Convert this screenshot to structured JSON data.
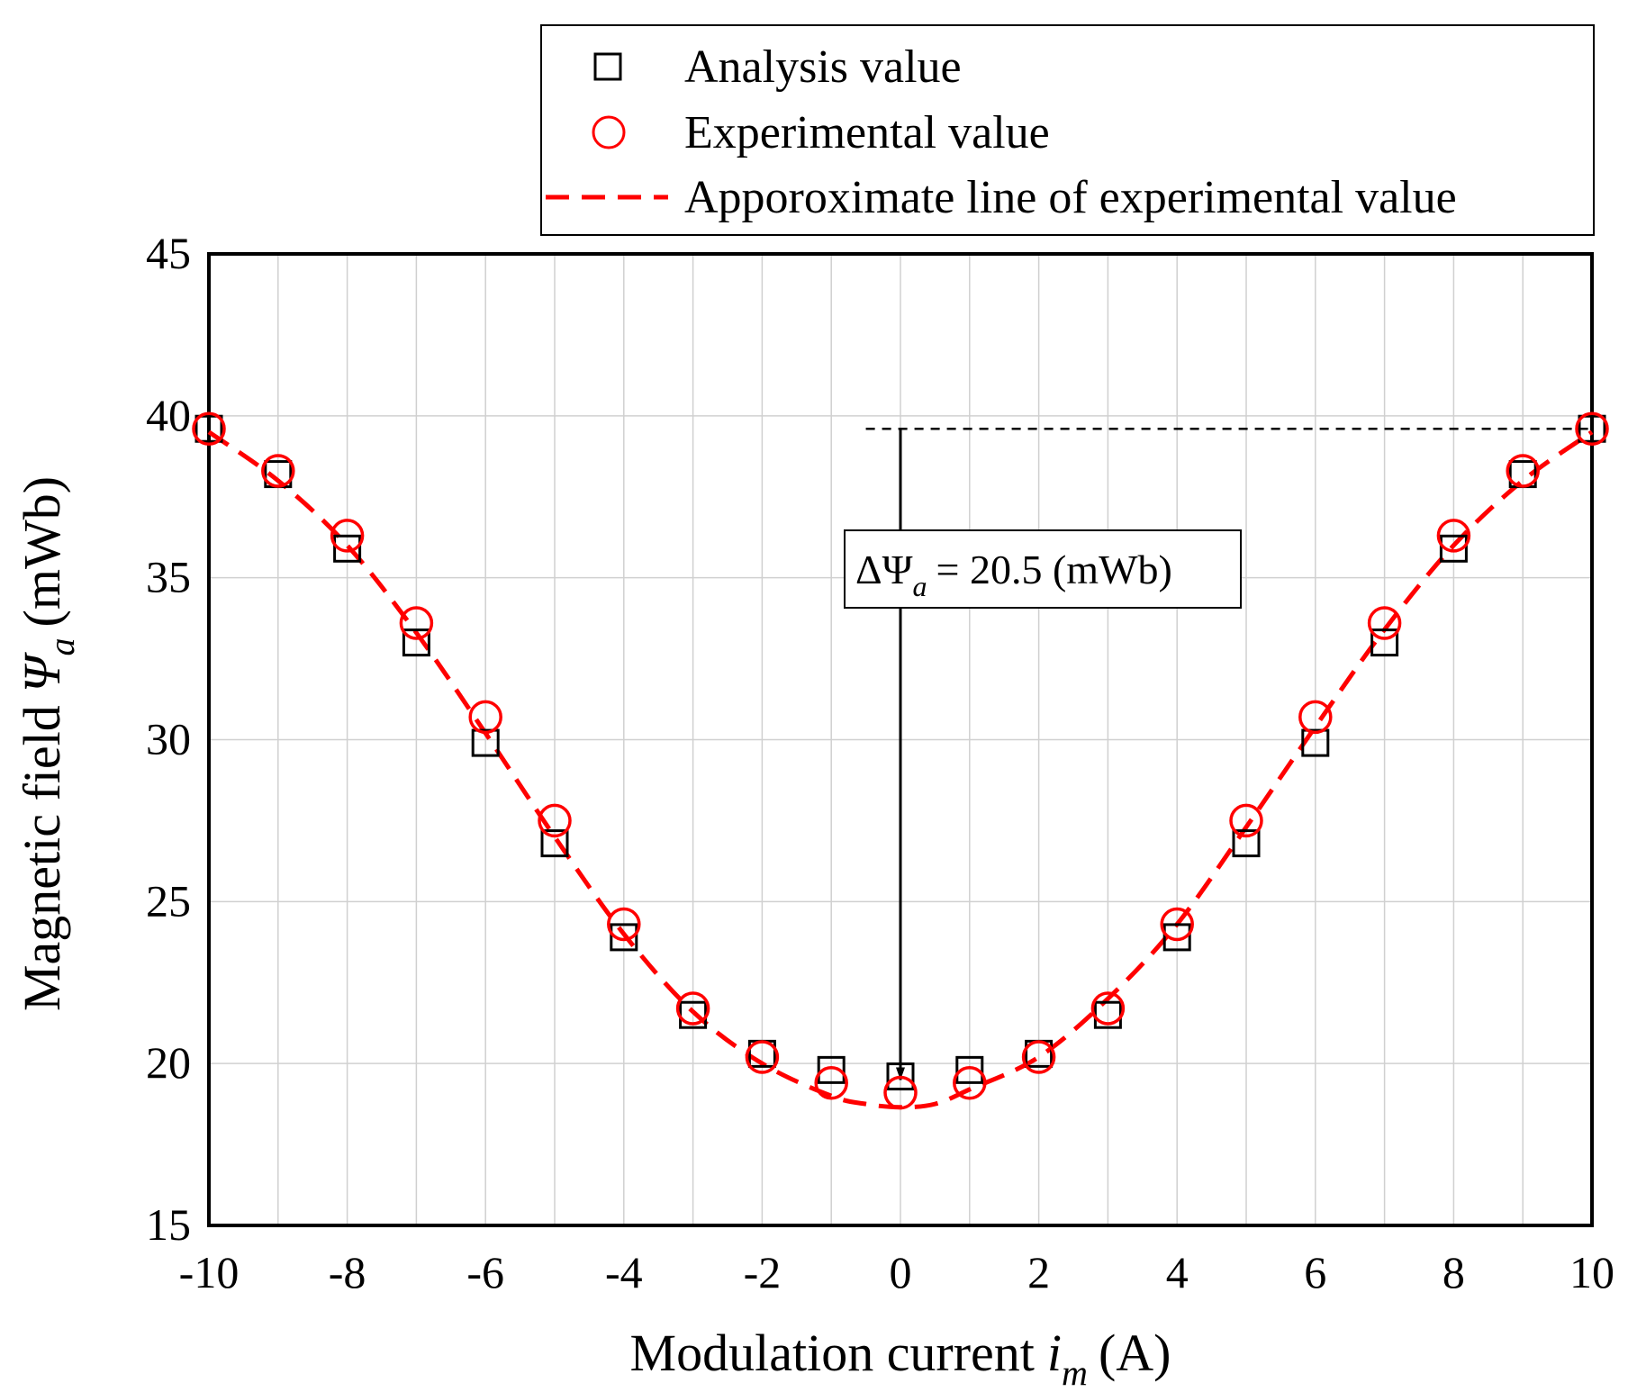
{
  "chart_data": {
    "type": "scatter",
    "xlabel": "Modulation current",
    "xlabel_symbol": "i",
    "xlabel_sub": "m",
    "xlabel_unit": "(A)",
    "ylabel": "Magnetic field",
    "ylabel_symbol": "Ψ",
    "ylabel_sub": "a",
    "ylabel_unit": "(mWb)",
    "xlim": [
      -10,
      10
    ],
    "ylim": [
      15,
      45
    ],
    "xticks": [
      -10,
      -8,
      -6,
      -4,
      -2,
      0,
      2,
      4,
      6,
      8,
      10
    ],
    "yticks": [
      15,
      20,
      25,
      30,
      35,
      40,
      45
    ],
    "grid": true,
    "legend_position": "top-right, above plot",
    "series": [
      {
        "name": "Analysis value",
        "marker": "square",
        "color": "#000000",
        "x": [
          -10,
          -9,
          -8,
          -7,
          -6,
          -5,
          -4,
          -3,
          -2,
          -1,
          0,
          1,
          2,
          3,
          4,
          5,
          6,
          7,
          8,
          9,
          10
        ],
        "y": [
          39.6,
          38.2,
          35.9,
          33.0,
          29.9,
          26.8,
          23.9,
          21.5,
          20.3,
          19.8,
          19.6,
          19.8,
          20.3,
          21.5,
          23.9,
          26.8,
          29.9,
          33.0,
          35.9,
          38.2,
          39.6
        ]
      },
      {
        "name": "Experimental value",
        "marker": "circle",
        "color": "#ff0000",
        "x": [
          -10,
          -9,
          -8,
          -7,
          -6,
          -5,
          -4,
          -3,
          -2,
          -1,
          0,
          1,
          2,
          3,
          4,
          5,
          6,
          7,
          8,
          9,
          10
        ],
        "y": [
          39.6,
          38.3,
          36.3,
          33.6,
          30.7,
          27.5,
          24.3,
          21.7,
          20.2,
          19.4,
          19.1,
          19.4,
          20.2,
          21.7,
          24.3,
          27.5,
          30.7,
          33.6,
          36.3,
          38.3,
          39.6
        ]
      },
      {
        "name": "Apporoximate line of experimental value",
        "line": "dashed",
        "color": "#ff0000",
        "x": [
          -10,
          -9,
          -8,
          -7,
          -6,
          -5,
          -4,
          -3,
          -2,
          -1,
          -0.5,
          0,
          0.5,
          1,
          2,
          3,
          4,
          5,
          6,
          7,
          8,
          9,
          10
        ],
        "y": [
          39.5,
          38.0,
          36.0,
          33.3,
          30.2,
          27.0,
          24.0,
          21.6,
          20.0,
          19.0,
          18.75,
          18.65,
          18.75,
          19.2,
          20.2,
          22.0,
          24.3,
          27.3,
          30.4,
          33.4,
          36.0,
          38.0,
          39.5
        ]
      }
    ],
    "annotation": {
      "delta_symbol": "ΔΨ",
      "delta_sub": "a",
      "equals_text": "= 20.5 (mWb)",
      "arrow_from": [
        0,
        39.6
      ],
      "arrow_to": [
        0,
        19.1
      ],
      "reference_line_y": 39.6,
      "reference_line_x_range": [
        -0.5,
        10
      ]
    }
  }
}
